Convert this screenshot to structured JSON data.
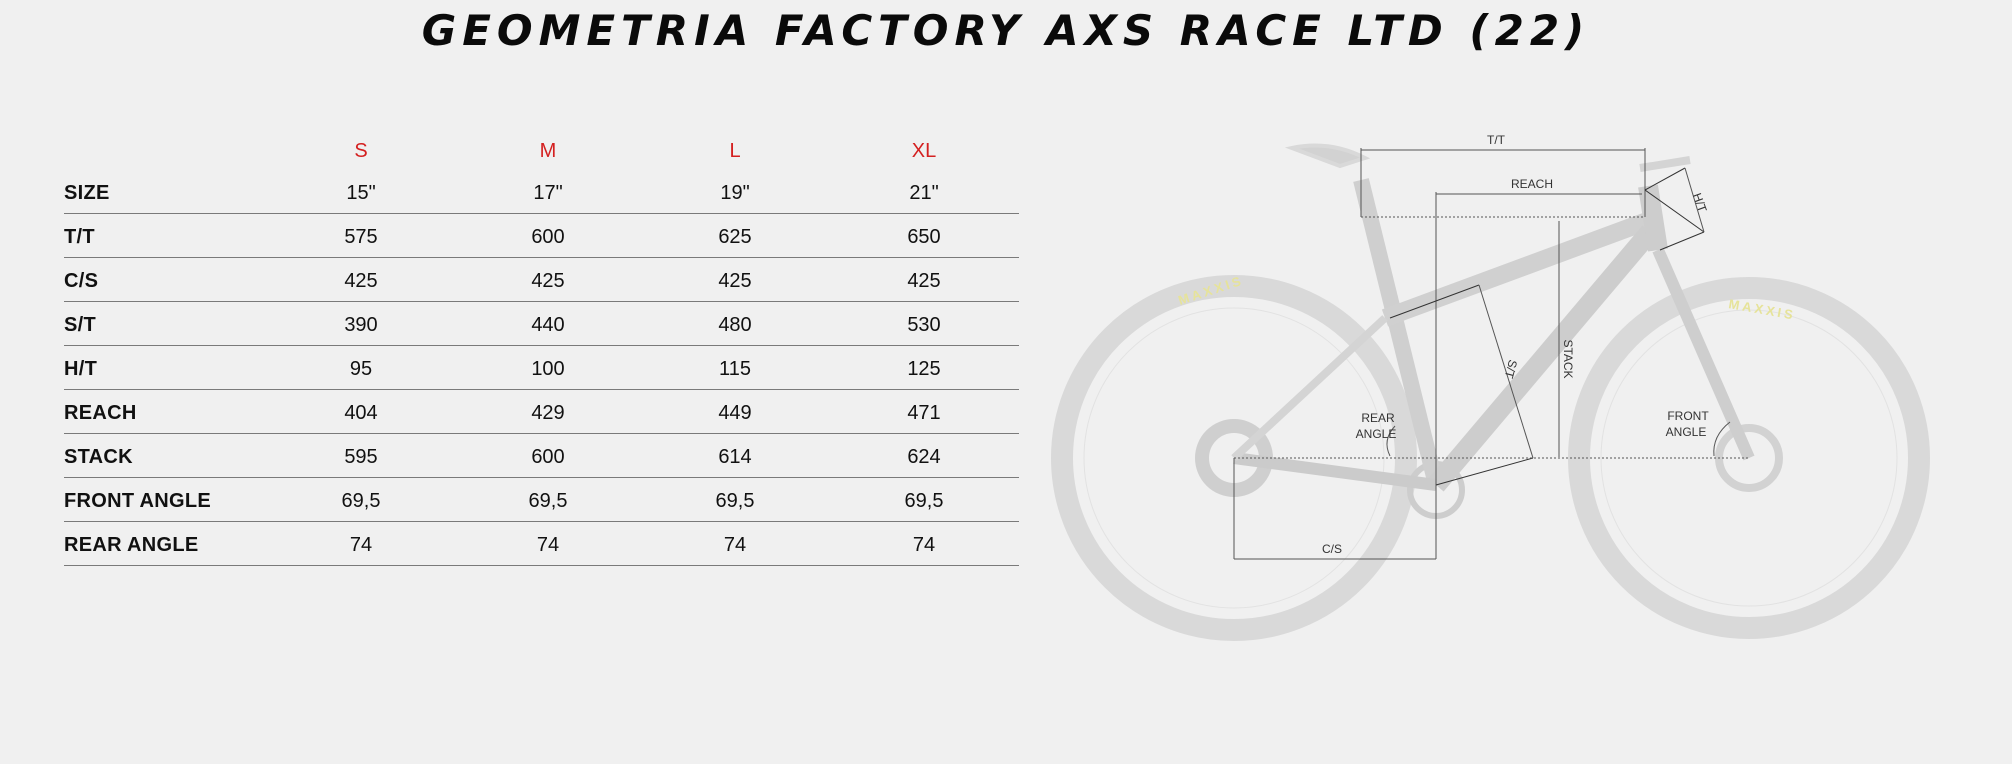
{
  "title": "GEOMETRIA FACTORY AXS RACE LTD (22)",
  "table": {
    "sizes": [
      "S",
      "M",
      "L",
      "XL"
    ],
    "rows": [
      {
        "label": "SIZE",
        "values": [
          "15\"",
          "17\"",
          "19\"",
          "21\""
        ]
      },
      {
        "label": "T/T",
        "values": [
          "575",
          "600",
          "625",
          "650"
        ]
      },
      {
        "label": "C/S",
        "values": [
          "425",
          "425",
          "425",
          "425"
        ]
      },
      {
        "label": "S/T",
        "values": [
          "390",
          "440",
          "480",
          "530"
        ]
      },
      {
        "label": "H/T",
        "values": [
          "95",
          "100",
          "115",
          "125"
        ]
      },
      {
        "label": "REACH",
        "values": [
          "404",
          "429",
          "449",
          "471"
        ]
      },
      {
        "label": "STACK",
        "values": [
          "595",
          "600",
          "614",
          "624"
        ]
      },
      {
        "label": "FRONT ANGLE",
        "values": [
          "69,5",
          "69,5",
          "69,5",
          "69,5"
        ]
      },
      {
        "label": "REAR ANGLE",
        "values": [
          "74",
          "74",
          "74",
          "74"
        ]
      }
    ]
  },
  "diagram": {
    "labels": {
      "tt": "T/T",
      "reach": "REACH",
      "ht": "H/T",
      "stack": "STACK",
      "st": "S/T",
      "cs": "C/S",
      "rear_angle_1": "REAR",
      "rear_angle_2": "ANGLE",
      "front_angle_1": "FRONT",
      "front_angle_2": "ANGLE"
    },
    "tire_brand": "MAXXIS"
  },
  "colors": {
    "size_header": "#d42020",
    "background": "#f0f0f0"
  }
}
